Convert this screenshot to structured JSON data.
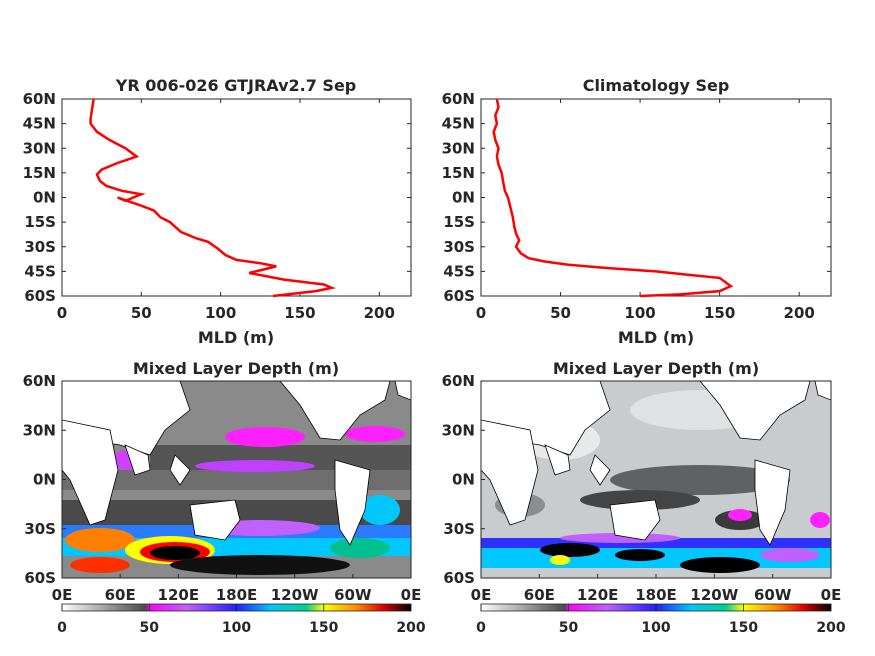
{
  "chart_data": [
    {
      "type": "line",
      "title": "YR 006-026 GTJRAv2.7 Sep",
      "xlabel": "MLD (m)",
      "ylabel": "",
      "xlim": [
        0,
        220
      ],
      "ylim": [
        -60,
        60
      ],
      "xticks": [
        0,
        50,
        100,
        150,
        200
      ],
      "yticks": [
        60,
        45,
        30,
        15,
        0,
        -15,
        -30,
        -45,
        -60
      ],
      "yticklabels": [
        "60N",
        "45N",
        "30N",
        "15N",
        "0N",
        "15S",
        "30S",
        "45S",
        "60S"
      ],
      "line_color": "#ff0000",
      "series": [
        {
          "x": [
            133,
            160,
            170,
            165,
            140,
            118,
            135,
            125,
            110,
            103,
            98,
            92,
            85,
            75,
            68,
            62,
            58,
            50,
            35,
            40,
            50,
            38,
            28,
            24,
            22,
            25,
            35,
            47,
            40,
            30,
            22,
            18,
            18,
            19,
            20
          ],
          "y": [
            -60,
            -57,
            -55,
            -53,
            -50,
            -46,
            -42,
            -40,
            -38,
            -35,
            -31,
            -27,
            -25,
            -21,
            -15,
            -12,
            -8,
            -5,
            0,
            -2,
            2,
            4,
            7,
            10,
            14,
            17,
            21,
            25,
            30,
            35,
            40,
            45,
            48,
            54,
            60
          ]
        }
      ]
    },
    {
      "type": "line",
      "title": "Climatology Sep",
      "xlabel": "MLD (m)",
      "ylabel": "",
      "xlim": [
        0,
        220
      ],
      "ylim": [
        -60,
        60
      ],
      "xticks": [
        0,
        50,
        100,
        150,
        200
      ],
      "yticks": [
        60,
        45,
        30,
        15,
        0,
        -15,
        -30,
        -45,
        -60
      ],
      "yticklabels": [
        "60N",
        "45N",
        "30N",
        "15N",
        "0N",
        "15S",
        "30S",
        "45S",
        "60S"
      ],
      "line_color": "#ff0000",
      "series": [
        {
          "x": [
            100,
            125,
            150,
            157,
            150,
            130,
            110,
            80,
            55,
            40,
            30,
            25,
            22,
            24,
            22,
            21,
            20,
            19,
            18,
            17,
            15,
            14,
            13,
            11,
            10,
            11,
            9,
            8,
            10,
            9,
            11,
            10
          ],
          "y": [
            -60,
            -59,
            -57,
            -54,
            -49,
            -47,
            -45,
            -43,
            -41,
            -39,
            -37,
            -34,
            -30,
            -26,
            -22,
            -18,
            -12,
            -8,
            -4,
            0,
            4,
            9,
            15,
            20,
            25,
            30,
            35,
            40,
            45,
            50,
            55,
            60
          ]
        }
      ]
    },
    {
      "type": "heatmap",
      "title": "Mixed Layer Depth (m)",
      "xticklabels": [
        "0E",
        "60E",
        "120E",
        "180E",
        "120W",
        "60W",
        "0E"
      ],
      "yticklabels": [
        "60N",
        "30N",
        "0N",
        "30S",
        "60S"
      ],
      "colorbar": {
        "ticks": [
          0,
          50,
          100,
          150,
          200
        ],
        "segments": [
          "gray-to-black",
          "magenta-to-blue",
          "blue-to-cyan-to-green",
          "yellow-to-red-to-black"
        ]
      }
    },
    {
      "type": "heatmap",
      "title": "Mixed Layer Depth (m)",
      "xticklabels": [
        "0E",
        "60E",
        "120E",
        "180E",
        "120W",
        "60W",
        "0E"
      ],
      "yticklabels": [
        "60N",
        "30N",
        "0N",
        "30S",
        "60S"
      ],
      "colorbar": {
        "ticks": [
          0,
          50,
          100,
          150,
          200
        ],
        "segments": [
          "gray-to-black",
          "magenta-to-blue",
          "blue-to-cyan-to-green",
          "yellow-to-red-to-black"
        ]
      }
    }
  ]
}
